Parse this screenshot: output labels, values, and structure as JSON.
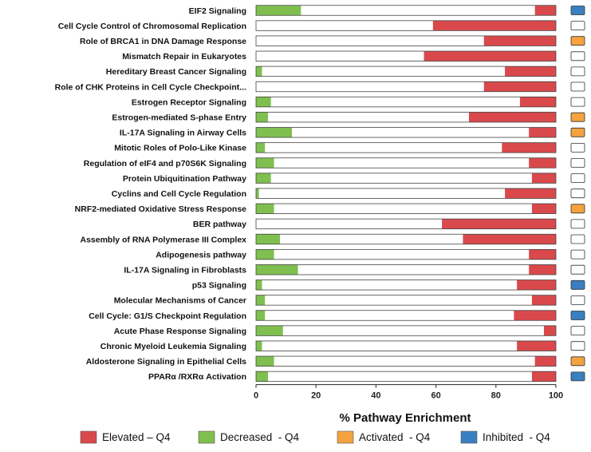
{
  "chart_data": {
    "type": "bar",
    "orientation": "horizontal",
    "stacked": true,
    "xlabel": "% Pathway Enrichment",
    "xlim": [
      0,
      100
    ],
    "xticks": [
      0,
      20,
      40,
      60,
      80,
      100
    ],
    "grid": false,
    "legend_position": "bottom",
    "categories": [
      "EIF2 Signaling",
      "Cell Cycle Control of Chromosomal Replication",
      "Role of BRCA1 in DNA Damage Response",
      "Mismatch Repair in Eukaryotes",
      "Hereditary Breast Cancer Signaling",
      "Role of CHK Proteins in Cell Cycle Checkpoint...",
      "Estrogen Receptor Signaling",
      "Estrogen-mediated S-phase Entry",
      "IL-17A Signaling in Airway Cells",
      "Mitotic Roles of Polo-Like Kinase",
      "Regulation of eIF4 and p70S6K Signaling",
      "Protein Ubiquitination Pathway",
      "Cyclins and Cell Cycle Regulation",
      "NRF2-mediated Oxidative Stress Response",
      "BER pathway",
      "Assembly of RNA Polymerase III Complex",
      "Adipogenesis pathway",
      "IL-17A Signaling in Fibroblasts",
      "p53 Signaling",
      "Molecular Mechanisms of Cancer",
      "Cell Cycle: G1/S Checkpoint Regulation",
      "Acute Phase Response Signaling",
      "Chronic Myeloid Leukemia Signaling",
      "Aldosterone Signaling in Epithelial Cells",
      "PPARα /RXRα Activation"
    ],
    "series": [
      {
        "name": "Decreased - Q4",
        "color": "#7fbf4f",
        "values": [
          15,
          0,
          0,
          0,
          2,
          0,
          5,
          4,
          12,
          3,
          6,
          5,
          1,
          6,
          0,
          8,
          6,
          14,
          2,
          3,
          3,
          9,
          2,
          6,
          4
        ]
      },
      {
        "name": "",
        "color": "#ffffff",
        "values": [
          78,
          59,
          76,
          56,
          81,
          76,
          83,
          67,
          79,
          79,
          85,
          87,
          82,
          86,
          62,
          61,
          85,
          77,
          85,
          89,
          83,
          87,
          85,
          87,
          88
        ]
      },
      {
        "name": "Elevated – Q4",
        "color": "#d9494c",
        "values": [
          7,
          41,
          24,
          44,
          17,
          24,
          12,
          29,
          9,
          18,
          9,
          8,
          17,
          8,
          38,
          31,
          9,
          9,
          13,
          8,
          14,
          4,
          13,
          7,
          8
        ]
      }
    ],
    "activation_state": [
      "inhibited",
      "none",
      "activated",
      "none",
      "none",
      "none",
      "none",
      "activated",
      "activated",
      "none",
      "none",
      "none",
      "none",
      "activated",
      "none",
      "none",
      "none",
      "none",
      "inhibited",
      "none",
      "inhibited",
      "none",
      "none",
      "activated",
      "inhibited"
    ],
    "legend": [
      {
        "label": "Elevated – Q4",
        "color": "#d9494c"
      },
      {
        "label": "Decreased  - Q4",
        "color": "#7fbf4f"
      },
      {
        "label": "Activated  - Q4",
        "color": "#f4a340"
      },
      {
        "label": "Inhibited  - Q4",
        "color": "#3a7fc1"
      }
    ],
    "state_colors": {
      "activated": "#f4a340",
      "inhibited": "#3a7fc1",
      "none": "#ffffff"
    }
  }
}
